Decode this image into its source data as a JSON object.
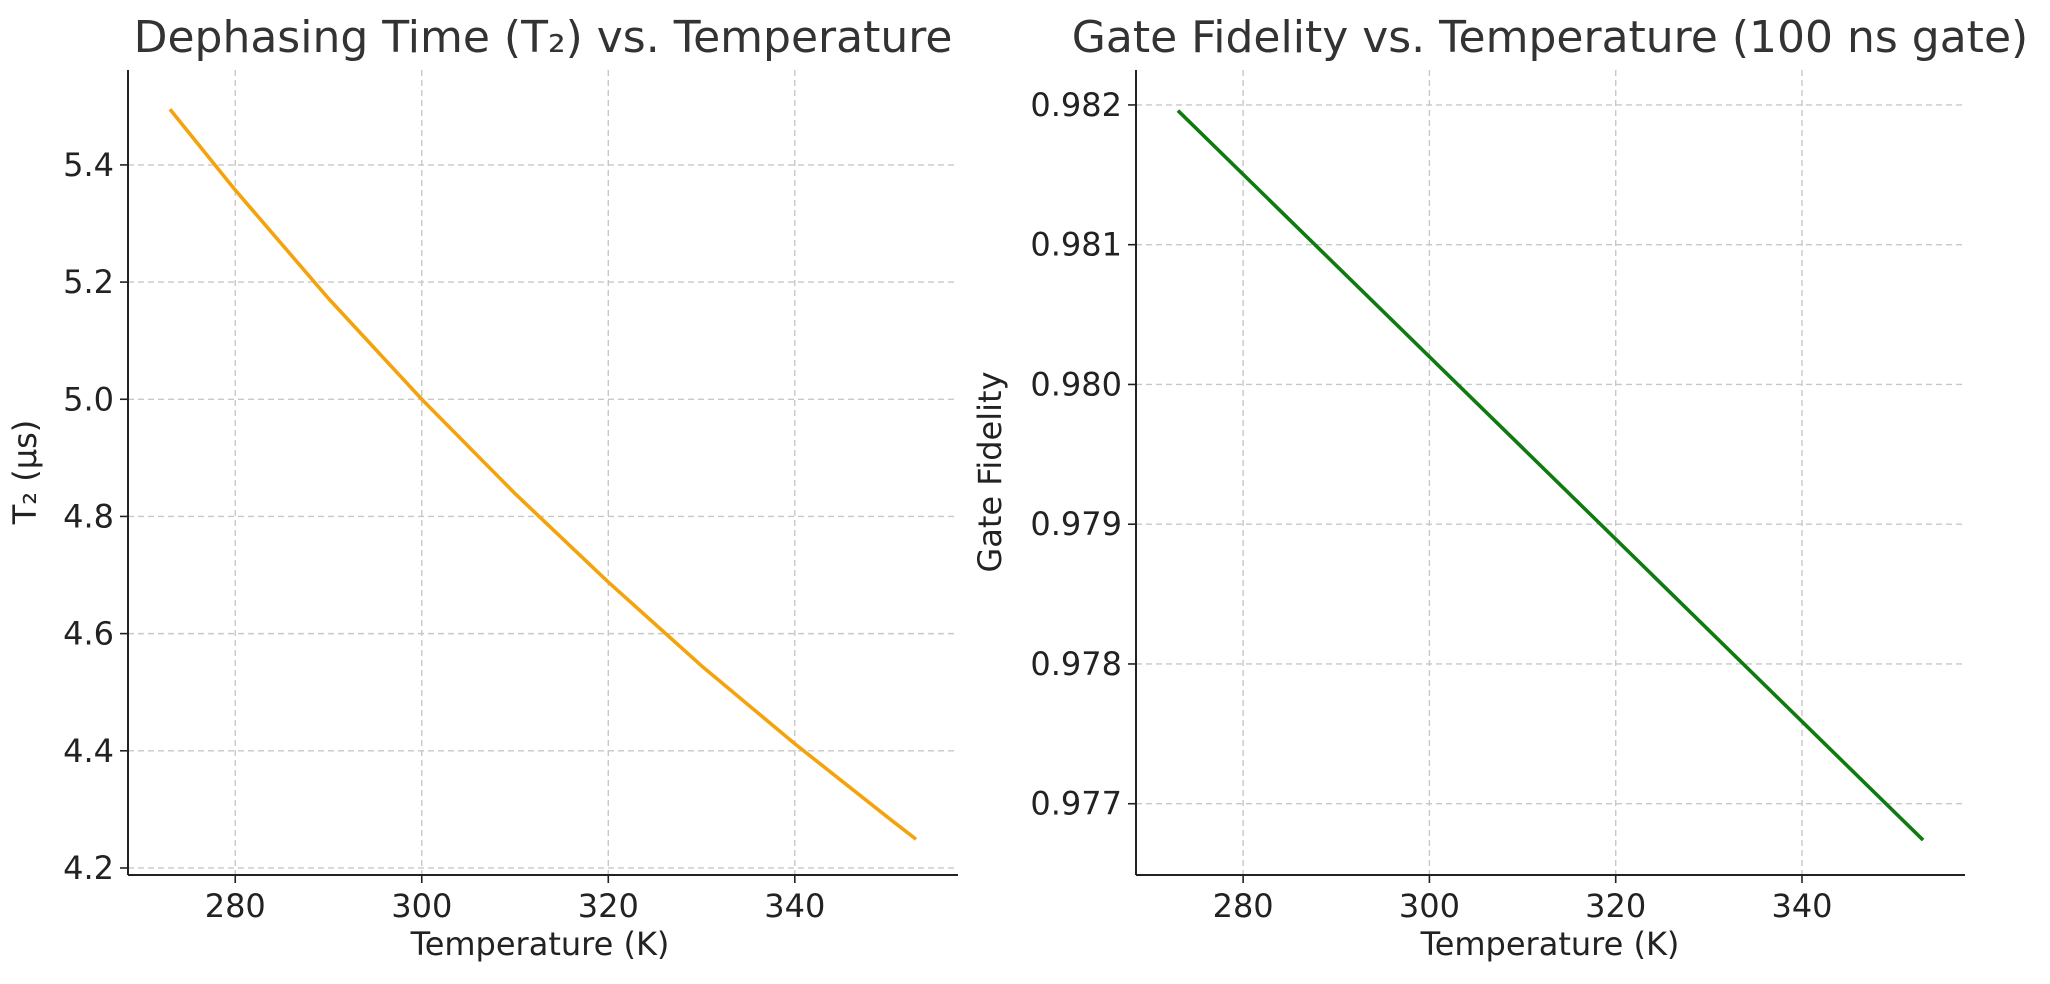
{
  "chart_data": [
    {
      "type": "line",
      "title": "Dephasing Time (T₂) vs. Temperature",
      "xlabel": "Temperature (K)",
      "ylabel": "T₂ (µs)",
      "xlim": [
        268.5,
        357.5
      ],
      "ylim": [
        4.188,
        5.562
      ],
      "x_ticks": [
        280,
        300,
        320,
        340
      ],
      "y_ticks": [
        4.2,
        4.4,
        4.6,
        4.8,
        5.0,
        5.2,
        5.4
      ],
      "x_tick_labels": [
        "280",
        "300",
        "320",
        "340"
      ],
      "y_tick_labels": [
        "4.2",
        "4.4",
        "4.6",
        "4.8",
        "5.0",
        "5.2",
        "5.4"
      ],
      "grid": true,
      "series": [
        {
          "color": "#f5a30d",
          "x": [
            273,
            280,
            290,
            300,
            310,
            320,
            330,
            340,
            350,
            353
          ],
          "y": [
            5.495,
            5.357,
            5.172,
            5.0,
            4.839,
            4.688,
            4.545,
            4.412,
            4.286,
            4.249
          ]
        }
      ]
    },
    {
      "type": "line",
      "title": "Gate Fidelity vs. Temperature (100 ns gate)",
      "xlabel": "Temperature (K)",
      "ylabel": "Gate Fidelity",
      "xlim": [
        268.5,
        357.5
      ],
      "ylim": [
        0.97649,
        0.98225
      ],
      "x_ticks": [
        280,
        300,
        320,
        340
      ],
      "y_ticks": [
        0.977,
        0.978,
        0.979,
        0.98,
        0.981,
        0.982
      ],
      "x_tick_labels": [
        "280",
        "300",
        "320",
        "340"
      ],
      "y_tick_labels": [
        "0.977",
        "0.978",
        "0.979",
        "0.980",
        "0.981",
        "0.982"
      ],
      "grid": true,
      "series": [
        {
          "color": "#0f7a0f",
          "x": [
            273,
            353
          ],
          "y": [
            0.98196,
            0.97674
          ]
        }
      ]
    }
  ]
}
